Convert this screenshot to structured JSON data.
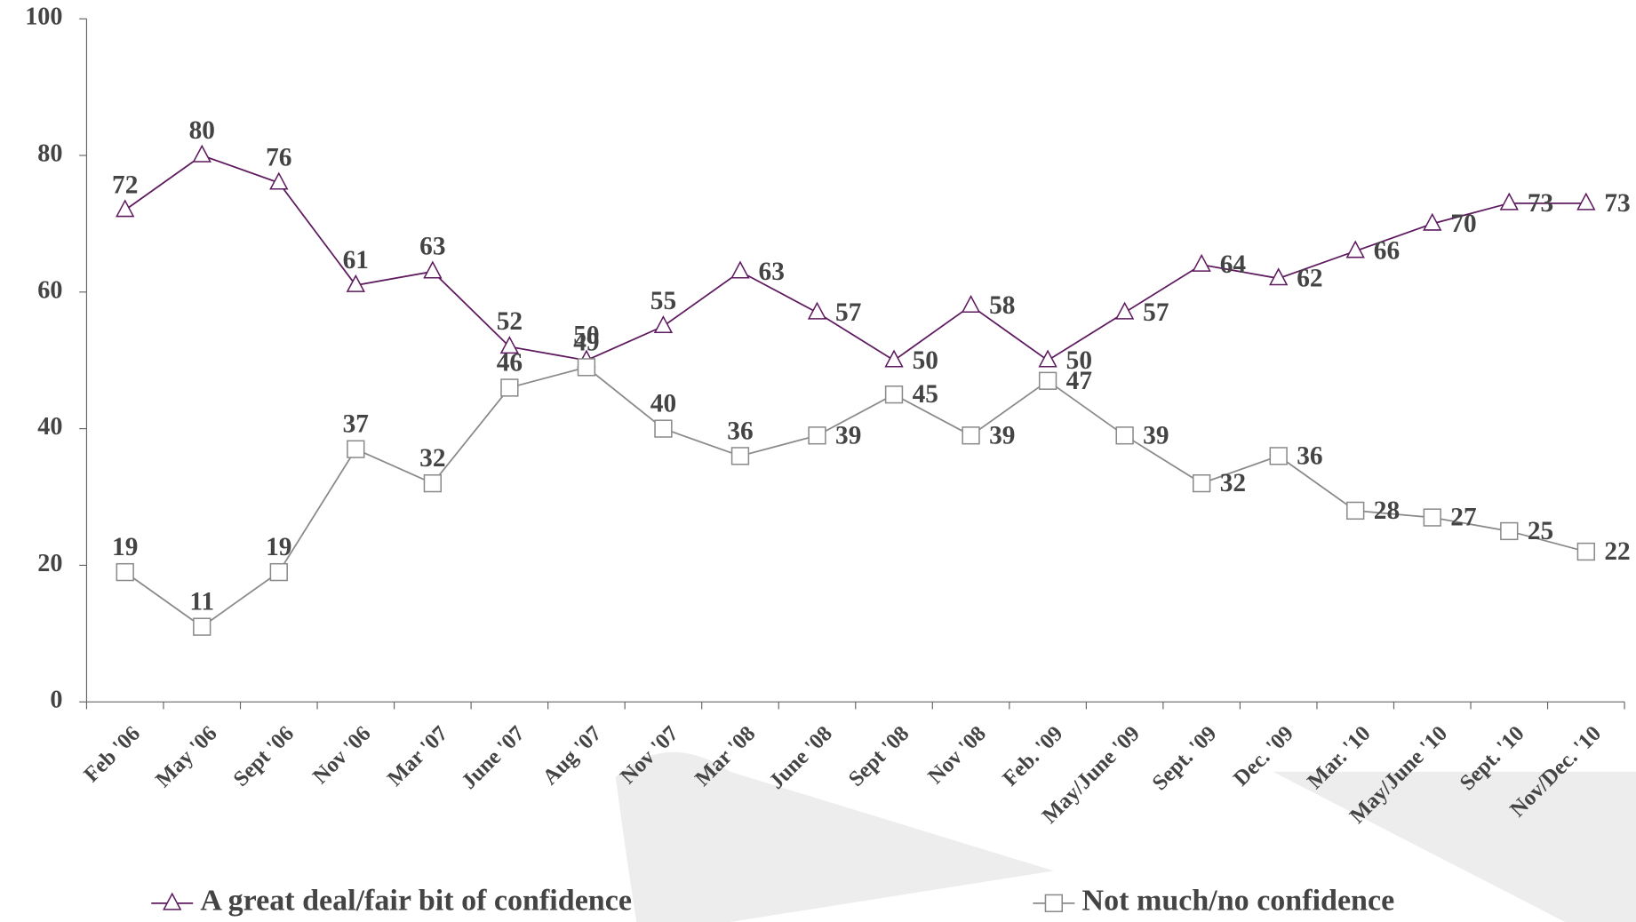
{
  "chart_data": {
    "type": "line",
    "categories": [
      "Feb '06",
      "May '06",
      "Sept '06",
      "Nov '06",
      "Mar '07",
      "June '07",
      "Aug '07",
      "Nov '07",
      "Mar '08",
      "June '08",
      "Sept '08",
      "Nov '08",
      "Feb. '09",
      "May/June '09",
      "Sept. '09",
      "Dec. '09",
      "Mar. '10",
      "May/June '10",
      "Sept. '10",
      "Nov/Dec. '10"
    ],
    "series": [
      {
        "name": "A great deal/fair bit of confidence",
        "color": "#5e1a5e",
        "marker": "triangle",
        "values": [
          72,
          80,
          76,
          61,
          63,
          52,
          50,
          55,
          63,
          57,
          50,
          58,
          50,
          57,
          64,
          62,
          66,
          70,
          73,
          73
        ]
      },
      {
        "name": "Not much/no confidence",
        "color": "#8a8a8a",
        "marker": "square",
        "values": [
          19,
          11,
          19,
          37,
          32,
          46,
          49,
          40,
          36,
          39,
          45,
          39,
          47,
          39,
          32,
          36,
          28,
          27,
          25,
          22
        ]
      }
    ],
    "ylim": [
      0,
      100
    ],
    "yticks": [
      0,
      20,
      40,
      60,
      80,
      100
    ],
    "grid": false
  }
}
